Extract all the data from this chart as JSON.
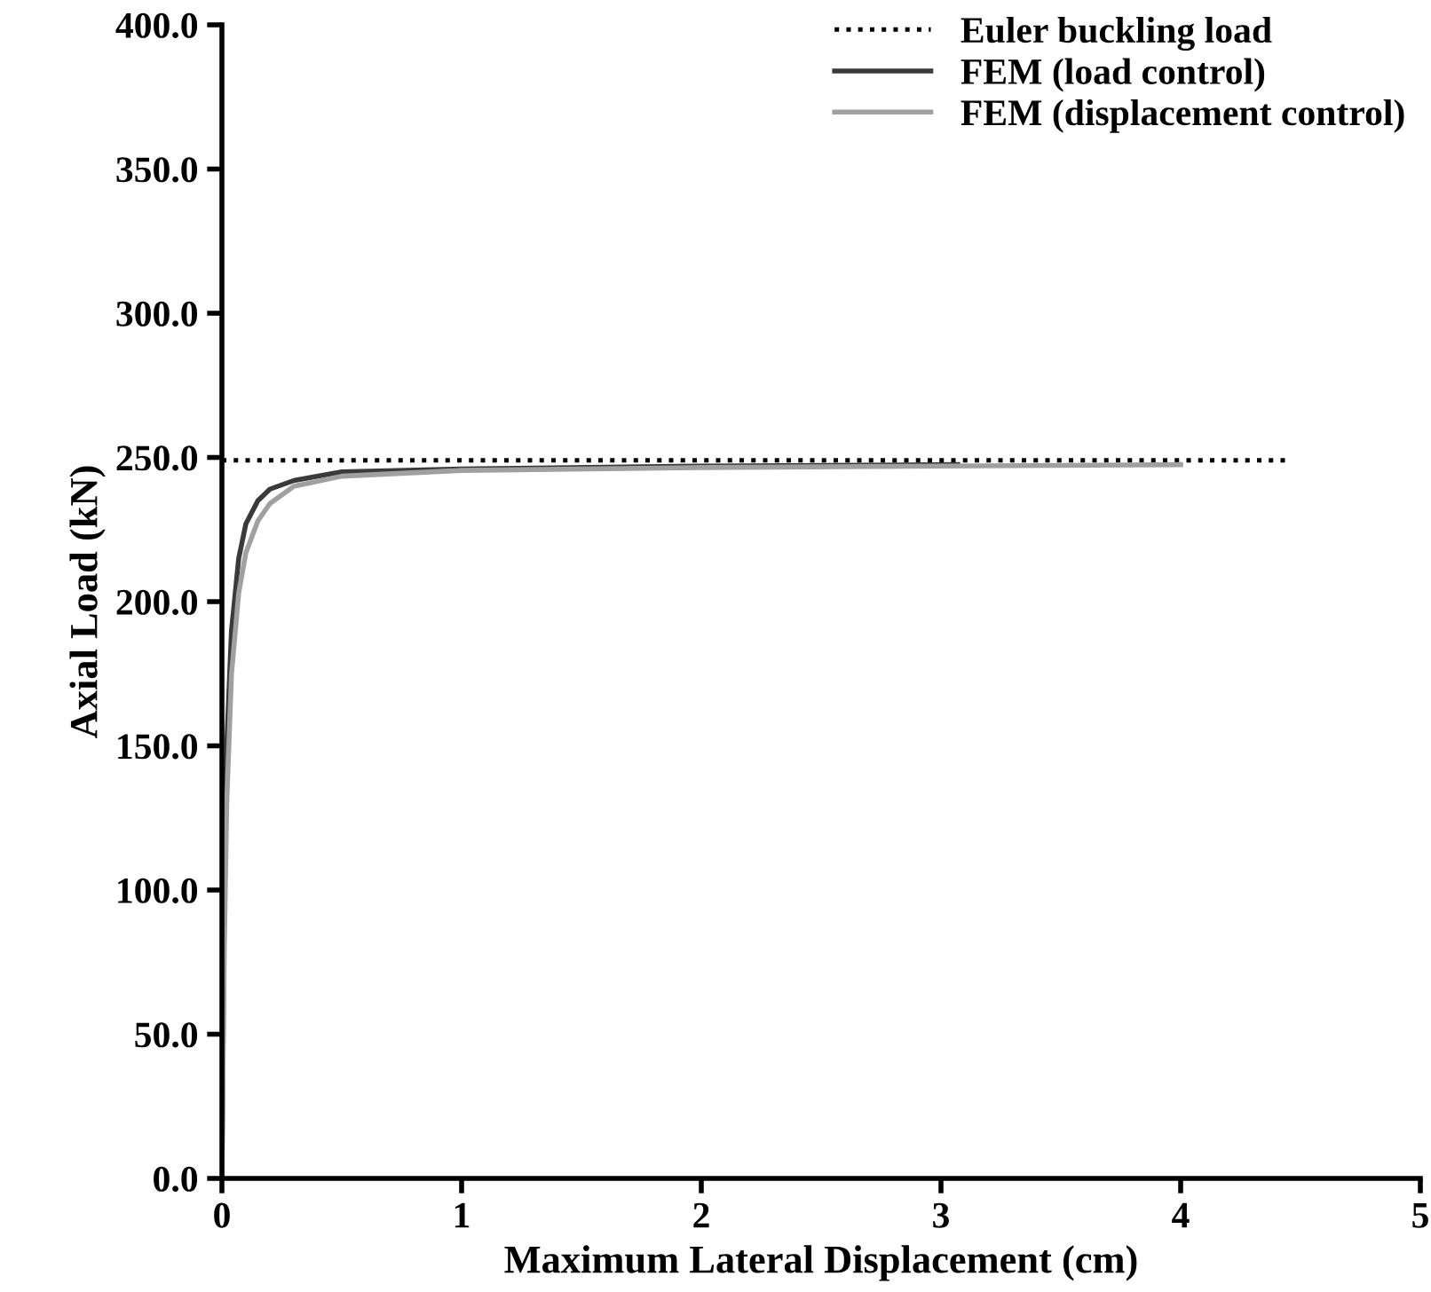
{
  "chart_data": {
    "type": "line",
    "xlabel": "Maximum Lateral Displacement (cm)",
    "ylabel": "Axial Load (kN)",
    "xlim": [
      0,
      5
    ],
    "xticks": [
      0,
      1,
      2,
      3,
      4,
      5
    ],
    "ylim": [
      0,
      400
    ],
    "yticks": [
      {
        "value": 0,
        "label": "0.0"
      },
      {
        "value": 50,
        "label": "50.0"
      },
      {
        "value": 100,
        "label": "100.0"
      },
      {
        "value": 150,
        "label": "150.0"
      },
      {
        "value": 200,
        "label": "200.0"
      },
      {
        "value": 250,
        "label": "250.0"
      },
      {
        "value": 300,
        "label": "300.0"
      },
      {
        "value": 350,
        "label": "350.0"
      },
      {
        "value": 400,
        "label": "400.0"
      }
    ],
    "grid": false,
    "legend": "top right",
    "series": [
      {
        "name": "Euler buckling load",
        "color": "#000000",
        "line_style": "dotted",
        "x": [
          0,
          4.45
        ],
        "values": [
          249,
          249
        ]
      },
      {
        "name": "FEM (load control)",
        "color": "#3a3a3a",
        "line_style": "solid",
        "x": [
          0,
          0.01,
          0.02,
          0.04,
          0.07,
          0.1,
          0.15,
          0.2,
          0.3,
          0.5,
          1,
          2,
          3.07
        ],
        "values": [
          0,
          100,
          150,
          190,
          215,
          227,
          235,
          239,
          242,
          245,
          246,
          247,
          247.5
        ]
      },
      {
        "name": "FEM (displacement control)",
        "color": "#a0a0a0",
        "line_style": "solid",
        "x": [
          0,
          0.01,
          0.02,
          0.04,
          0.07,
          0.1,
          0.15,
          0.2,
          0.3,
          0.5,
          1,
          2,
          3,
          4.0
        ],
        "values": [
          0,
          80,
          130,
          175,
          203,
          217,
          228,
          234,
          240,
          243.5,
          245.5,
          246.5,
          247,
          247.5
        ]
      }
    ]
  }
}
